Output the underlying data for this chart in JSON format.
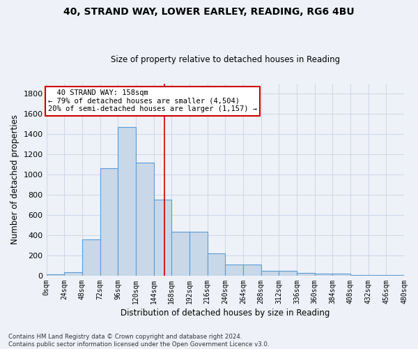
{
  "title1": "40, STRAND WAY, LOWER EARLEY, READING, RG6 4BU",
  "title2": "Size of property relative to detached houses in Reading",
  "xlabel": "Distribution of detached houses by size in Reading",
  "ylabel": "Number of detached properties",
  "bar_values": [
    10,
    35,
    360,
    1060,
    1470,
    1120,
    750,
    435,
    435,
    220,
    110,
    110,
    50,
    45,
    30,
    20,
    20,
    5,
    5
  ],
  "bin_edges": [
    0,
    24,
    48,
    72,
    96,
    120,
    144,
    168,
    192,
    216,
    240,
    264,
    288,
    312,
    336,
    360,
    384,
    408,
    432,
    480
  ],
  "tick_labels": [
    "0sqm",
    "24sqm",
    "48sqm",
    "72sqm",
    "96sqm",
    "120sqm",
    "144sqm",
    "168sqm",
    "192sqm",
    "216sqm",
    "240sqm",
    "264sqm",
    "288sqm",
    "312sqm",
    "336sqm",
    "360sqm",
    "384sqm",
    "408sqm",
    "432sqm",
    "456sqm",
    "480sqm"
  ],
  "bar_color": "#c8d8e8",
  "bar_edge_color": "#5b9bd5",
  "vline_x": 158,
  "vline_color": "#cc0000",
  "annotation_text": "  40 STRAND WAY: 158sqm\n← 79% of detached houses are smaller (4,504)\n20% of semi-detached houses are larger (1,157) →",
  "annotation_box_color": "#ffffff",
  "annotation_box_edge": "#cc0000",
  "ylim": [
    0,
    1900
  ],
  "yticks": [
    0,
    200,
    400,
    600,
    800,
    1000,
    1200,
    1400,
    1600,
    1800
  ],
  "grid_color": "#d0d8e8",
  "bg_color": "#eef2f8",
  "fig_bg_color": "#eef2f8",
  "footer1": "Contains HM Land Registry data © Crown copyright and database right 2024.",
  "footer2": "Contains public sector information licensed under the Open Government Licence v3.0."
}
